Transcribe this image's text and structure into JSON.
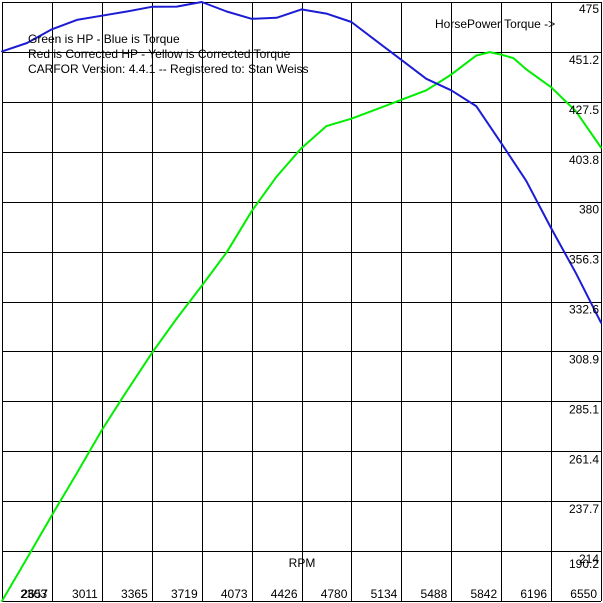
{
  "chart_data": {
    "type": "line",
    "legend_lines": [
      "Green is HP - Blue is Torque",
      "Red is Corrected HP - Yellow is Corrected Torque",
      "CARFOR Version: 4.4.1 -- Registered to:    Stan Weiss"
    ],
    "axis_caption": "HorsePower Torque ->",
    "xlabel": "RPM",
    "x_ticks": [
      "2303",
      "2657",
      "3011",
      "3365",
      "3719",
      "4073",
      "4426",
      "4780",
      "5134",
      "5488",
      "5842",
      "6196",
      "6550"
    ],
    "y_ticks": [
      "475",
      "451.2",
      "427.5",
      "403.8",
      "380",
      "356.3",
      "332.6",
      "308.9",
      "285.1",
      "261.4",
      "237.7",
      "214",
      "190.2"
    ],
    "xlim": [
      2303,
      6550
    ],
    "ylim": [
      190.2,
      475
    ],
    "grid": true,
    "colors": {
      "hp": "#00ee00",
      "torque": "#1c1cd4",
      "grid": "#000000"
    },
    "series": [
      {
        "name": "HP",
        "x": [
          2303,
          2480,
          2657,
          2834,
          3011,
          3188,
          3365,
          3542,
          3719,
          3896,
          4073,
          4250,
          4426,
          4603,
          4780,
          4957,
          5134,
          5311,
          5488,
          5665,
          5760,
          5842,
          5930,
          6020,
          6196,
          6373,
          6550
        ],
        "y": [
          190.2,
          210.5,
          231,
          251,
          271.5,
          290,
          308,
          324.5,
          340,
          356,
          375.5,
          392,
          405.5,
          416,
          419.5,
          424,
          428.5,
          433,
          440.5,
          449.5,
          451.2,
          450,
          448.3,
          443,
          434.5,
          423,
          405.8
        ]
      },
      {
        "name": "Torque",
        "x": [
          2303,
          2480,
          2657,
          2834,
          3011,
          3188,
          3365,
          3542,
          3719,
          3896,
          4073,
          4250,
          4426,
          4603,
          4780,
          4957,
          5134,
          5311,
          5488,
          5665,
          5842,
          6020,
          6196,
          6373,
          6550
        ],
        "y": [
          451.5,
          455.5,
          462,
          466.5,
          468.5,
          470.5,
          472.7,
          472.8,
          475,
          470.5,
          467,
          467.5,
          471.5,
          469.5,
          465.5,
          456.5,
          447.5,
          438.5,
          433,
          425.5,
          408,
          390,
          367.5,
          346,
          322.5
        ]
      }
    ]
  }
}
